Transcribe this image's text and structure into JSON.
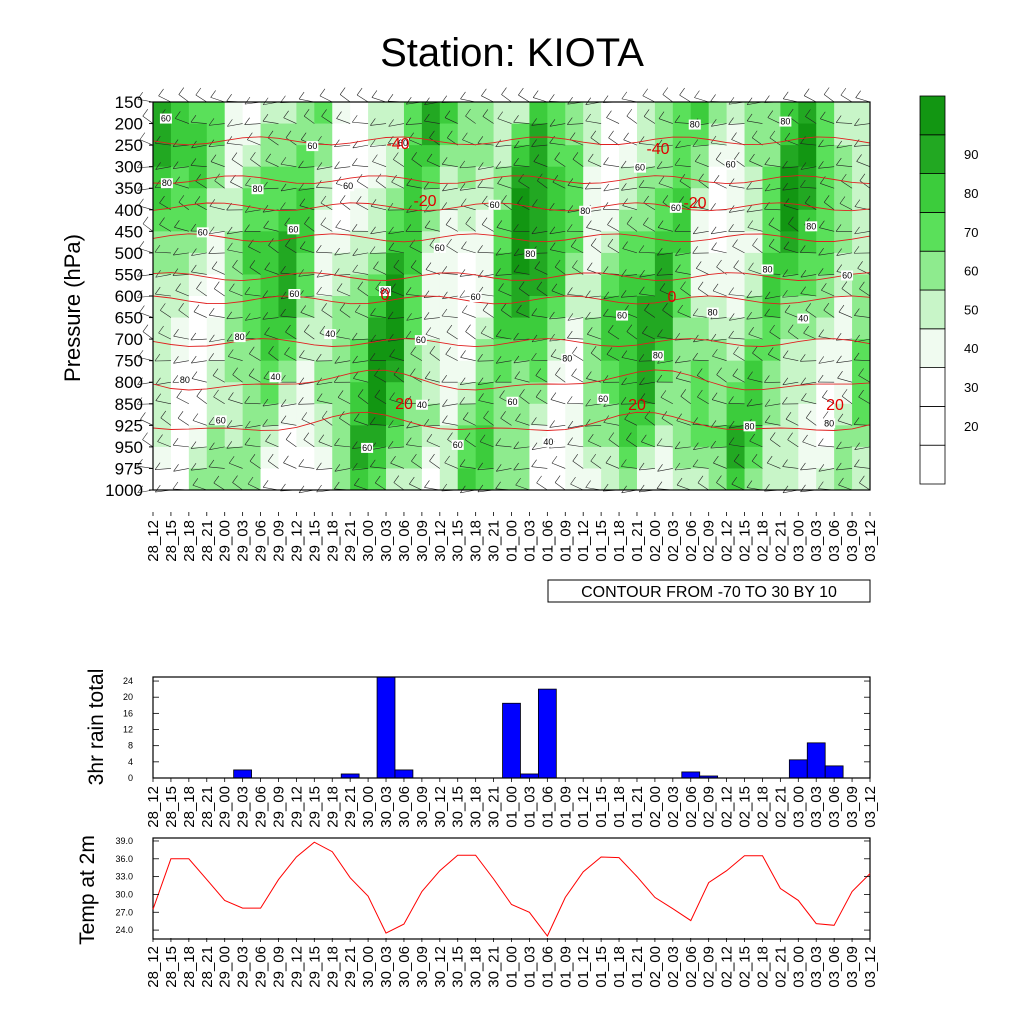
{
  "title": "Station: KIOTA",
  "time_labels": [
    "28_12",
    "28_15",
    "28_18",
    "28_21",
    "29_00",
    "29_03",
    "29_06",
    "29_09",
    "29_12",
    "29_15",
    "29_18",
    "29_21",
    "30_00",
    "30_03",
    "30_06",
    "30_09",
    "30_12",
    "30_15",
    "30_18",
    "30_21",
    "01_00",
    "01_03",
    "01_06",
    "01_09",
    "01_12",
    "01_15",
    "01_18",
    "01_21",
    "02_00",
    "02_03",
    "02_06",
    "02_09",
    "02_12",
    "02_15",
    "02_18",
    "02_21",
    "03_00",
    "03_03",
    "03_06",
    "03_09",
    "03_12"
  ],
  "chart_data": [
    {
      "type": "heatmap",
      "ylabel": "Pressure (hPa)",
      "y_levels": [
        150,
        200,
        250,
        300,
        350,
        400,
        450,
        500,
        550,
        600,
        650,
        700,
        750,
        800,
        850,
        925,
        950,
        975,
        1000
      ],
      "contour_note": "CONTOUR FROM -70 TO 30 BY 10",
      "colorbar": {
        "tick_labels": [
          "20",
          "30",
          "40",
          "50",
          "60",
          "70",
          "80",
          "90"
        ],
        "colors": [
          "#ffffff",
          "#ffffff",
          "#ffffff",
          "#f0fbf0",
          "#c8f5c8",
          "#8eeb8e",
          "#5ae05a",
          "#3ccc3c",
          "#22a822",
          "#129612"
        ]
      },
      "contour_labels": {
        "humidity": [
          "60",
          "60",
          "60",
          "40",
          "60",
          "40",
          "60",
          "60",
          "60",
          "60",
          "60",
          "60",
          "40",
          "60",
          "80",
          "80",
          "80",
          "60",
          "40",
          "60",
          "80",
          "80",
          "80",
          "80",
          "80",
          "60",
          "60",
          "80",
          "80",
          "60",
          "60",
          "80",
          "80",
          "80",
          "80",
          "60",
          "60",
          "60",
          "80",
          "80",
          "60",
          "40"
        ],
        "temperature": [
          "-40",
          "-40",
          "-20",
          "-20",
          "0",
          "0",
          "20",
          "20",
          "20"
        ]
      }
    },
    {
      "type": "bar",
      "ylabel": "3hr rain total",
      "ylim": [
        0,
        25
      ],
      "yticks": [
        "0",
        "4",
        "8",
        "12",
        "16",
        "20",
        "24"
      ],
      "color": "#0000ff",
      "values": [
        0,
        0,
        0,
        0,
        0,
        2,
        0,
        0,
        0,
        0,
        0,
        1,
        0,
        25,
        2,
        0,
        0,
        0,
        0,
        0,
        18.5,
        1,
        22,
        0,
        0,
        0,
        0,
        0,
        0,
        0,
        1.5,
        0.5,
        0,
        0,
        0,
        0,
        4.5,
        8.7,
        3,
        0,
        0
      ]
    },
    {
      "type": "line",
      "ylabel": "Temp at 2m",
      "ylim": [
        22.5,
        39.5
      ],
      "yticks": [
        "24.0",
        "27.0",
        "30.0",
        "33.0",
        "36.0",
        "39.0"
      ],
      "color": "#ff0000",
      "values": [
        27.5,
        36.0,
        36.0,
        32.5,
        29.0,
        27.7,
        27.7,
        32.5,
        36.3,
        38.8,
        37.2,
        32.8,
        29.7,
        23.5,
        25.0,
        30.5,
        34.0,
        36.6,
        36.6,
        32.6,
        28.3,
        27.0,
        23.0,
        29.5,
        33.8,
        36.3,
        36.2,
        33.0,
        29.5,
        27.6,
        25.6,
        32.0,
        34.0,
        36.5,
        36.5,
        31.0,
        29.0,
        25.1,
        24.8,
        30.5,
        33.5
      ]
    }
  ]
}
